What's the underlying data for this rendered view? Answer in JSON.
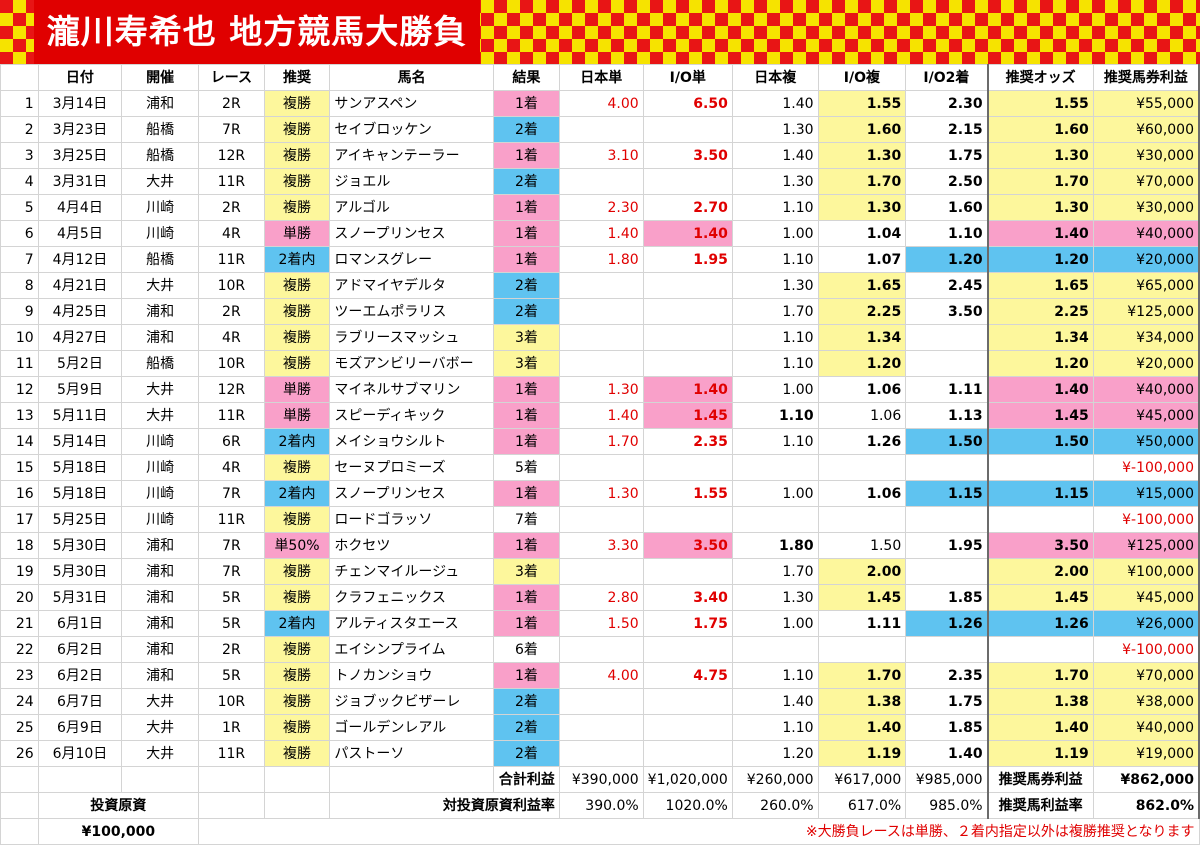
{
  "title": "瀧川寿希也 地方競馬大勝負",
  "headers": [
    "日付",
    "開催",
    "レース",
    "推奨",
    "馬名",
    "結果",
    "日本単",
    "I/O単",
    "日本複",
    "I/O複",
    "I/O2着",
    "推奨オッズ",
    "推奨馬券利益"
  ],
  "rows": [
    {
      "n": "1",
      "date": "3月14日",
      "venue": "浦和",
      "race": "2R",
      "rec": "複勝",
      "horse": "サンアスペン",
      "result": "1着",
      "jt": "4.00",
      "iot": "6.50",
      "jf": "1.40",
      "iof": "1.55",
      "io2": "2.30",
      "odds": "1.55",
      "profit": "¥55,000"
    },
    {
      "n": "2",
      "date": "3月23日",
      "venue": "船橋",
      "race": "7R",
      "rec": "複勝",
      "horse": "セイブロッケン",
      "result": "2着",
      "jt": "",
      "iot": "",
      "jf": "1.30",
      "iof": "1.60",
      "io2": "2.15",
      "odds": "1.60",
      "profit": "¥60,000"
    },
    {
      "n": "3",
      "date": "3月25日",
      "venue": "船橋",
      "race": "12R",
      "rec": "複勝",
      "horse": "アイキャンテーラー",
      "result": "1着",
      "jt": "3.10",
      "iot": "3.50",
      "jf": "1.40",
      "iof": "1.30",
      "io2": "1.75",
      "odds": "1.30",
      "profit": "¥30,000"
    },
    {
      "n": "4",
      "date": "3月31日",
      "venue": "大井",
      "race": "11R",
      "rec": "複勝",
      "horse": "ジョエル",
      "result": "2着",
      "jt": "",
      "iot": "",
      "jf": "1.30",
      "iof": "1.70",
      "io2": "2.50",
      "odds": "1.70",
      "profit": "¥70,000"
    },
    {
      "n": "5",
      "date": "4月4日",
      "venue": "川崎",
      "race": "2R",
      "rec": "複勝",
      "horse": "アルゴル",
      "result": "1着",
      "jt": "2.30",
      "iot": "2.70",
      "jf": "1.10",
      "iof": "1.30",
      "io2": "1.60",
      "odds": "1.30",
      "profit": "¥30,000"
    },
    {
      "n": "6",
      "date": "4月5日",
      "venue": "川崎",
      "race": "4R",
      "rec": "単勝",
      "horse": "スノープリンセス",
      "result": "1着",
      "jt": "1.40",
      "iot": "1.40",
      "jf": "1.00",
      "iof": "1.04",
      "io2": "1.10",
      "odds": "1.40",
      "profit": "¥40,000"
    },
    {
      "n": "7",
      "date": "4月12日",
      "venue": "船橋",
      "race": "11R",
      "rec": "2着内",
      "horse": "ロマンスグレー",
      "result": "1着",
      "jt": "1.80",
      "iot": "1.95",
      "jf": "1.10",
      "iof": "1.07",
      "io2": "1.20",
      "odds": "1.20",
      "profit": "¥20,000"
    },
    {
      "n": "8",
      "date": "4月21日",
      "venue": "大井",
      "race": "10R",
      "rec": "複勝",
      "horse": "アドマイヤデルタ",
      "result": "2着",
      "jt": "",
      "iot": "",
      "jf": "1.30",
      "iof": "1.65",
      "io2": "2.45",
      "odds": "1.65",
      "profit": "¥65,000"
    },
    {
      "n": "9",
      "date": "4月25日",
      "venue": "浦和",
      "race": "2R",
      "rec": "複勝",
      "horse": "ツーエムポラリス",
      "result": "2着",
      "jt": "",
      "iot": "",
      "jf": "1.70",
      "iof": "2.25",
      "io2": "3.50",
      "odds": "2.25",
      "profit": "¥125,000"
    },
    {
      "n": "10",
      "date": "4月27日",
      "venue": "浦和",
      "race": "4R",
      "rec": "複勝",
      "horse": "ラブリースマッシュ",
      "result": "3着",
      "jt": "",
      "iot": "",
      "jf": "1.10",
      "iof": "1.34",
      "io2": "",
      "odds": "1.34",
      "profit": "¥34,000"
    },
    {
      "n": "11",
      "date": "5月2日",
      "venue": "船橋",
      "race": "10R",
      "rec": "複勝",
      "horse": "モズアンビリーバボー",
      "result": "3着",
      "jt": "",
      "iot": "",
      "jf": "1.10",
      "iof": "1.20",
      "io2": "",
      "odds": "1.20",
      "profit": "¥20,000"
    },
    {
      "n": "12",
      "date": "5月9日",
      "venue": "大井",
      "race": "12R",
      "rec": "単勝",
      "horse": "マイネルサブマリン",
      "result": "1着",
      "jt": "1.30",
      "iot": "1.40",
      "jf": "1.00",
      "iof": "1.06",
      "io2": "1.11",
      "odds": "1.40",
      "profit": "¥40,000"
    },
    {
      "n": "13",
      "date": "5月11日",
      "venue": "大井",
      "race": "11R",
      "rec": "単勝",
      "horse": "スピーディキック",
      "result": "1着",
      "jt": "1.40",
      "iot": "1.45",
      "jf": "1.10",
      "iof": "1.06",
      "io2": "1.13",
      "odds": "1.45",
      "profit": "¥45,000"
    },
    {
      "n": "14",
      "date": "5月14日",
      "venue": "川崎",
      "race": "6R",
      "rec": "2着内",
      "horse": "メイショウシルト",
      "result": "1着",
      "jt": "1.70",
      "iot": "2.35",
      "jf": "1.10",
      "iof": "1.26",
      "io2": "1.50",
      "odds": "1.50",
      "profit": "¥50,000"
    },
    {
      "n": "15",
      "date": "5月18日",
      "venue": "川崎",
      "race": "4R",
      "rec": "複勝",
      "horse": "セーヌプロミーズ",
      "result": "5着",
      "jt": "",
      "iot": "",
      "jf": "",
      "iof": "",
      "io2": "",
      "odds": "",
      "profit": "¥-100,000"
    },
    {
      "n": "16",
      "date": "5月18日",
      "venue": "川崎",
      "race": "7R",
      "rec": "2着内",
      "horse": "スノープリンセス",
      "result": "1着",
      "jt": "1.30",
      "iot": "1.55",
      "jf": "1.00",
      "iof": "1.06",
      "io2": "1.15",
      "odds": "1.15",
      "profit": "¥15,000"
    },
    {
      "n": "17",
      "date": "5月25日",
      "venue": "川崎",
      "race": "11R",
      "rec": "複勝",
      "horse": "ロードゴラッソ",
      "result": "7着",
      "jt": "",
      "iot": "",
      "jf": "",
      "iof": "",
      "io2": "",
      "odds": "",
      "profit": "¥-100,000"
    },
    {
      "n": "18",
      "date": "5月30日",
      "venue": "浦和",
      "race": "7R",
      "rec": "単50%",
      "horse": "ホクセツ",
      "result": "1着",
      "jt": "3.30",
      "iot": "3.50",
      "jf": "1.80",
      "iof": "1.50",
      "io2": "1.95",
      "odds": "3.50",
      "profit": "¥125,000"
    },
    {
      "n": "19",
      "date": "5月30日",
      "venue": "浦和",
      "race": "7R",
      "rec": "複勝",
      "horse": "チェンマイルージュ",
      "result": "3着",
      "jt": "",
      "iot": "",
      "jf": "1.70",
      "iof": "2.00",
      "io2": "",
      "odds": "2.00",
      "profit": "¥100,000"
    },
    {
      "n": "20",
      "date": "5月31日",
      "venue": "浦和",
      "race": "5R",
      "rec": "複勝",
      "horse": "クラフェニックス",
      "result": "1着",
      "jt": "2.80",
      "iot": "3.40",
      "jf": "1.30",
      "iof": "1.45",
      "io2": "1.85",
      "odds": "1.45",
      "profit": "¥45,000"
    },
    {
      "n": "21",
      "date": "6月1日",
      "venue": "浦和",
      "race": "5R",
      "rec": "2着内",
      "horse": "アルティスタエース",
      "result": "1着",
      "jt": "1.50",
      "iot": "1.75",
      "jf": "1.00",
      "iof": "1.11",
      "io2": "1.26",
      "odds": "1.26",
      "profit": "¥26,000"
    },
    {
      "n": "22",
      "date": "6月2日",
      "venue": "浦和",
      "race": "2R",
      "rec": "複勝",
      "horse": "エイシンプライム",
      "result": "6着",
      "jt": "",
      "iot": "",
      "jf": "",
      "iof": "",
      "io2": "",
      "odds": "",
      "profit": "¥-100,000"
    },
    {
      "n": "23",
      "date": "6月2日",
      "venue": "浦和",
      "race": "5R",
      "rec": "複勝",
      "horse": "トノカンショウ",
      "result": "1着",
      "jt": "4.00",
      "iot": "4.75",
      "jf": "1.10",
      "iof": "1.70",
      "io2": "2.35",
      "odds": "1.70",
      "profit": "¥70,000"
    },
    {
      "n": "24",
      "date": "6月7日",
      "venue": "大井",
      "race": "10R",
      "rec": "複勝",
      "horse": "ジョブックビザーレ",
      "result": "2着",
      "jt": "",
      "iot": "",
      "jf": "1.40",
      "iof": "1.38",
      "io2": "1.75",
      "odds": "1.38",
      "profit": "¥38,000"
    },
    {
      "n": "25",
      "date": "6月9日",
      "venue": "大井",
      "race": "1R",
      "rec": "複勝",
      "horse": "ゴールデンレアル",
      "result": "2着",
      "jt": "",
      "iot": "",
      "jf": "1.10",
      "iof": "1.40",
      "io2": "1.85",
      "odds": "1.40",
      "profit": "¥40,000"
    },
    {
      "n": "26",
      "date": "6月10日",
      "venue": "大井",
      "race": "11R",
      "rec": "複勝",
      "horse": "パストーソ",
      "result": "2着",
      "jt": "",
      "iot": "",
      "jf": "1.20",
      "iof": "1.19",
      "io2": "1.40",
      "odds": "1.19",
      "profit": "¥19,000"
    }
  ],
  "totals": {
    "label": "合計利益",
    "values": [
      "¥390,000",
      "¥1,020,000",
      "¥260,000",
      "¥617,000",
      "¥985,000"
    ],
    "rec_label": "推奨馬券利益",
    "rec_value": "¥862,000"
  },
  "rates": {
    "label": "対投資原資利益率",
    "values": [
      "390.0%",
      "1020.0%",
      "260.0%",
      "617.0%",
      "985.0%"
    ],
    "rec_label": "推奨馬利益率",
    "rec_value": "862.0%"
  },
  "capital": {
    "label": "投資原資",
    "value": "¥100,000"
  },
  "note": "※大勝負レースは単勝、２着内指定以外は複勝推奨となります",
  "colors": {
    "yellow": "#fdf79c",
    "pink": "#f9a0c9",
    "blue": "#5fc3f0",
    "red": "#e00000"
  }
}
